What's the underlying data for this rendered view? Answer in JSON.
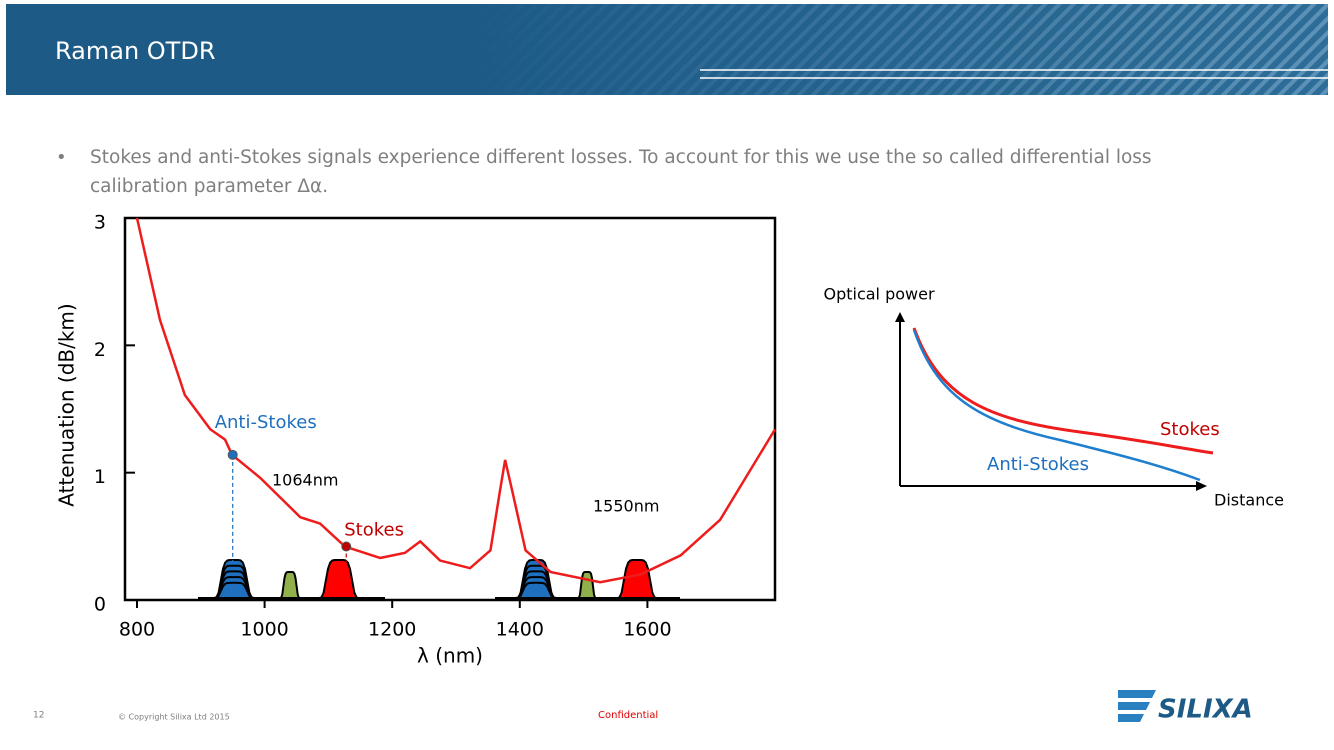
{
  "header": {
    "title": "Raman OTDR"
  },
  "bullet": [
    "Stokes and anti-Stokes signals experience different losses. To account for this we use the so called differential loss",
    "calibration parameter Δα."
  ],
  "chart_data": {
    "type": "line",
    "x_label": "λ (nm)",
    "y_label": "Attenuation (dB/km)",
    "x": [
      800,
      836,
      875,
      915,
      938,
      949,
      993,
      1056,
      1087,
      1126,
      1181,
      1220,
      1244,
      1275,
      1322,
      1354,
      1369,
      1377,
      1388,
      1409,
      1448,
      1526,
      1589,
      1652,
      1714,
      1800
    ],
    "values": [
      3.0,
      2.2,
      1.61,
      1.34,
      1.26,
      1.14,
      0.96,
      0.65,
      0.6,
      0.42,
      0.33,
      0.37,
      0.46,
      0.31,
      0.25,
      0.39,
      0.86,
      1.1,
      0.86,
      0.39,
      0.22,
      0.14,
      0.2,
      0.35,
      0.63,
      1.34
    ],
    "color": "#ee1c1c",
    "xlim": [
      800,
      1800
    ],
    "ylim": [
      0,
      3
    ],
    "xticks": [
      800,
      1000,
      1200,
      1400,
      1600
    ],
    "yticks": [
      0,
      1,
      2,
      3
    ],
    "annotations": [
      {
        "text": "Anti-Stokes",
        "x": 950,
        "y": 1.14,
        "color": "#1f6fbf"
      },
      {
        "text": "Stokes",
        "x": 1128,
        "y": 0.42,
        "color": "#c00000"
      }
    ],
    "labels": [
      "1064nm",
      "1550nm"
    ]
  },
  "power_diagram": {
    "y_label": "Optical power",
    "x_label": "Distance",
    "stokes": "Stokes",
    "anti_stokes": "Anti-Stokes"
  },
  "footer": {
    "page": "12",
    "copyright": "© Copyright Silixa Ltd  2015",
    "confidential": "Confidential",
    "logo": "SILIXA"
  }
}
